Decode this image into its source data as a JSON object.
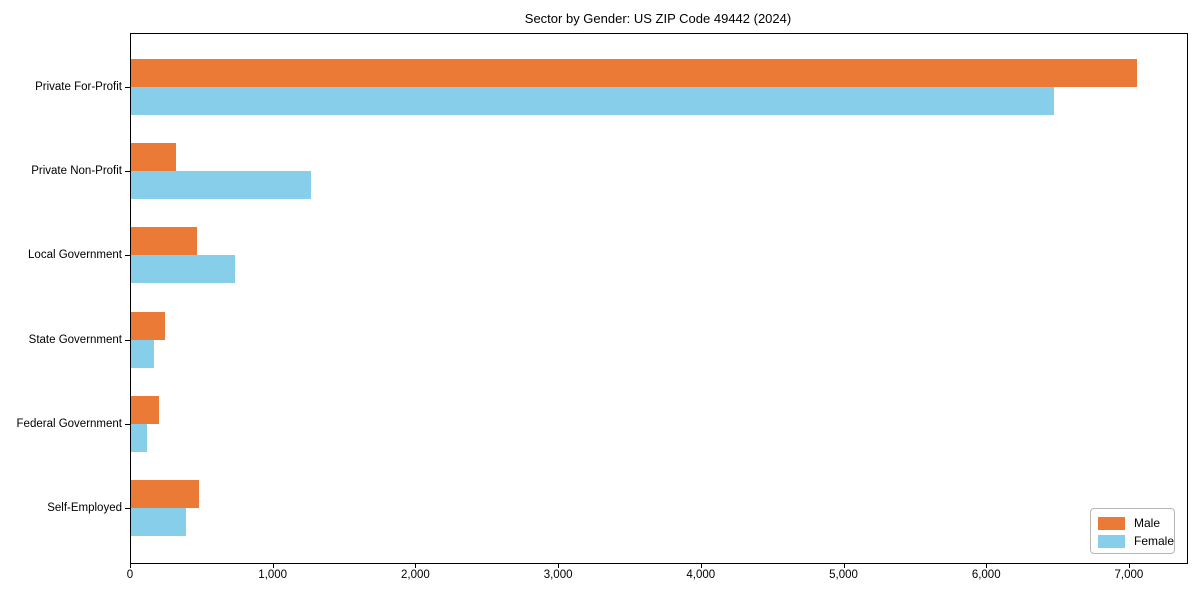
{
  "title": "Sector by Gender: US ZIP Code 49442 (2024)",
  "legend": {
    "position": "lower right",
    "items": [
      {
        "label": "Male",
        "color": "#EB7A36"
      },
      {
        "label": "Female",
        "color": "#87CEEB"
      }
    ]
  },
  "chart_data": {
    "type": "bar",
    "orientation": "horizontal",
    "title": "Sector by Gender: US ZIP Code 49442 (2024)",
    "categories": [
      "Private For-Profit",
      "Private Non-Profit",
      "Local Government",
      "State Government",
      "Federal Government",
      "Self-Employed"
    ],
    "series": [
      {
        "name": "Male",
        "color": "#EB7A36",
        "values": [
          7050,
          315,
          465,
          235,
          195,
          475
        ]
      },
      {
        "name": "Female",
        "color": "#87CEEB",
        "values": [
          6470,
          1260,
          730,
          160,
          110,
          385
        ]
      }
    ],
    "xlabel": "",
    "ylabel": "",
    "xlim": [
      0,
      7400
    ],
    "xticks": [
      0,
      1000,
      2000,
      3000,
      4000,
      5000,
      6000,
      7000
    ],
    "xtick_labels": [
      "0",
      "1,000",
      "2,000",
      "3,000",
      "4,000",
      "5,000",
      "6,000",
      "7,000"
    ],
    "grid": false,
    "legend_position": "lower right"
  }
}
